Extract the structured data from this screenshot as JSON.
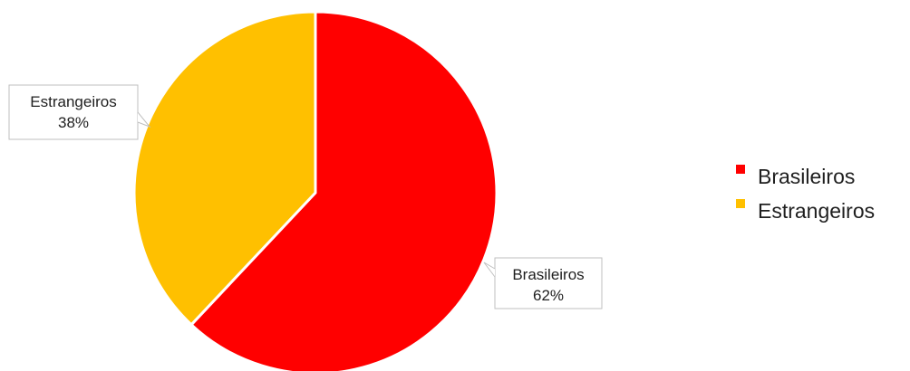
{
  "chart_data": {
    "type": "pie",
    "title": "",
    "categories": [
      "Brasileiros",
      "Estrangeiros"
    ],
    "values": [
      62,
      38
    ],
    "unit": "%",
    "colors": [
      "#ff0000",
      "#ffc000"
    ],
    "start_angle_deg": 0,
    "direction": "clockwise",
    "data_labels": [
      {
        "category": "Brasileiros",
        "value_text": "62%",
        "position": "outside-bottom-right"
      },
      {
        "category": "Estrangeiros",
        "value_text": "38%",
        "position": "outside-top-left"
      }
    ],
    "legend": {
      "position": "right",
      "entries": [
        {
          "label": "Brasileiros",
          "color": "#ff0000"
        },
        {
          "label": "Estrangeiros",
          "color": "#ffc000"
        }
      ]
    }
  }
}
